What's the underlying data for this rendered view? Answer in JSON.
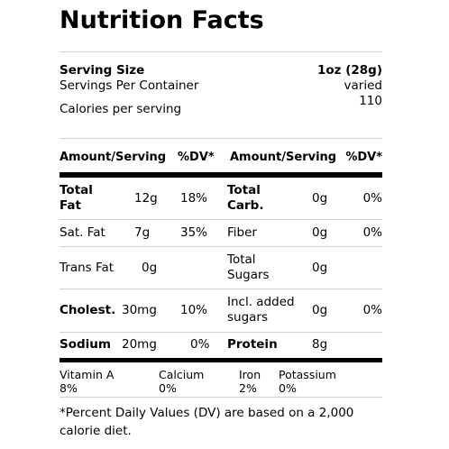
{
  "title": "Nutrition Facts",
  "serving": {
    "size_label": "Serving Size",
    "size_value": "1oz (28g)",
    "per_container_label": "Servings Per Container",
    "per_container_value": "varied",
    "calories_label": "Calories per serving",
    "calories_value": "110"
  },
  "header": {
    "amount_left": "Amount/Serving",
    "dv_left": "%DV*",
    "amount_right": "Amount/Serving",
    "dv_right": "%DV*"
  },
  "rows": [
    {
      "name": "Total Fat",
      "amount": "12g",
      "dv": "18%",
      "name2": "Total Carb.",
      "amount2": "0g",
      "dv2": "0%"
    },
    {
      "name": "Sat. Fat",
      "amount": "7g",
      "dv": "35%",
      "name2": "Fiber",
      "amount2": "0g",
      "dv2": "0%"
    },
    {
      "name": "Trans Fat",
      "amount": "0g",
      "dv": "",
      "name2": "Total Sugars",
      "amount2": "0g",
      "dv2": ""
    },
    {
      "name": "Cholest.",
      "amount": "30mg",
      "dv": "10%",
      "name2": "Incl. added sugars",
      "amount2": "0g",
      "dv2": "0%"
    },
    {
      "name": "Sodium",
      "amount": "20mg",
      "dv": "0%",
      "name2": "Protein",
      "amount2": "8g",
      "dv2": ""
    }
  ],
  "vitamins": [
    {
      "name": "Vitamin A",
      "value": "8%"
    },
    {
      "name": "Calcium",
      "value": "0%"
    },
    {
      "name": "Iron",
      "value": "2%"
    },
    {
      "name": "Potassium",
      "value": "0%"
    }
  ],
  "footnote": "*Percent Daily Values (DV) are based on a 2,000 calorie diet."
}
